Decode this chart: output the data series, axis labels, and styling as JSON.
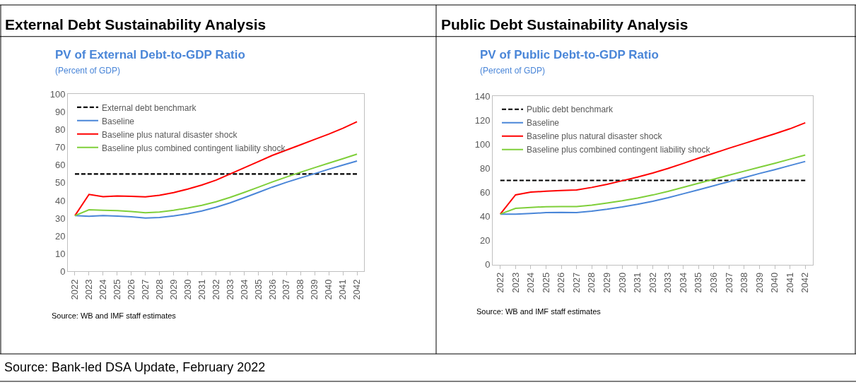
{
  "chart_data": [
    {
      "type": "line",
      "title": "PV of External Debt-to-GDP Ratio",
      "subtitle": "(Percent of GDP)",
      "categories": [
        "2022",
        "2023",
        "2024",
        "2025",
        "2026",
        "2027",
        "2028",
        "2029",
        "2030",
        "2031",
        "2032",
        "2033",
        "2034",
        "2035",
        "2036",
        "2037",
        "2038",
        "2039",
        "2040",
        "2041",
        "2042"
      ],
      "series": [
        {
          "name": "External debt benchmark",
          "color": "#000000",
          "line_style": "dashed",
          "values": [
            55,
            55,
            55,
            55,
            55,
            55,
            55,
            55,
            55,
            55,
            55,
            55,
            55,
            55,
            55,
            55,
            55,
            55,
            55,
            55,
            55
          ]
        },
        {
          "name": "Baseline",
          "color": "#4a86d8",
          "values": [
            31.5,
            31.1,
            31.5,
            31.2,
            30.8,
            30.1,
            30.4,
            31.3,
            32.5,
            34.1,
            36.2,
            38.7,
            41.6,
            44.6,
            47.6,
            50.3,
            52.8,
            55.2,
            57.7,
            60,
            62.3
          ]
        },
        {
          "name": "Baseline plus natural disaster shock",
          "color": "#ff0000",
          "values": [
            31.5,
            43.5,
            42.2,
            42.6,
            42.4,
            42.1,
            43,
            44.5,
            46.5,
            48.8,
            51.5,
            55,
            58.5,
            62,
            65.5,
            68.5,
            71.5,
            74.5,
            77.5,
            80.8,
            84.5
          ]
        },
        {
          "name": "Baseline plus combined contingent liability shock",
          "color": "#7fcf3a",
          "values": [
            31.5,
            34.8,
            34.5,
            34.3,
            33.8,
            33.1,
            33.5,
            34.5,
            35.8,
            37.3,
            39.3,
            41.8,
            44.6,
            47.5,
            50.5,
            53.3,
            56,
            58.6,
            61.1,
            63.6,
            66.2
          ]
        }
      ],
      "ylim": [
        0,
        100
      ],
      "yticks": [
        0,
        10,
        20,
        30,
        40,
        50,
        60,
        70,
        80,
        90,
        100
      ],
      "grid": false,
      "legend": "top left",
      "marker": "none",
      "annotations": [
        "External Debt Sustainability Analysis",
        "Source: WB and IMF staff estimates",
        "Source: Bank-led DSA Update, February 2022"
      ]
    },
    {
      "type": "line",
      "title": "PV of Public Debt-to-GDP Ratio",
      "subtitle": "(Percent of GDP)",
      "categories": [
        "2022",
        "2023",
        "2024",
        "2025",
        "2026",
        "2027",
        "2028",
        "2029",
        "2030",
        "2031",
        "2032",
        "2033",
        "2034",
        "2035",
        "2036",
        "2037",
        "2038",
        "2039",
        "2040",
        "2041",
        "2042"
      ],
      "series": [
        {
          "name": "Public debt benchmark",
          "color": "#000000",
          "line_style": "dashed",
          "values": [
            70,
            70,
            70,
            70,
            70,
            70,
            70,
            70,
            70,
            70,
            70,
            70,
            70,
            70,
            70,
            70,
            70,
            70,
            70,
            70,
            70
          ]
        },
        {
          "name": "Baseline",
          "color": "#4a86d8",
          "values": [
            42,
            42,
            42.5,
            43.2,
            43.4,
            43.2,
            44.5,
            46.1,
            48,
            50.2,
            52.7,
            55.6,
            58.9,
            62.2,
            65.6,
            69,
            72.4,
            75.8,
            79,
            82.4,
            85.8
          ]
        },
        {
          "name": "Baseline plus natural disaster shock",
          "color": "#ff0000",
          "values": [
            42,
            58,
            60.3,
            61,
            61.7,
            62.1,
            64.2,
            66.8,
            69.8,
            72.8,
            76.2,
            80,
            84.2,
            88.5,
            92.6,
            96.8,
            100.8,
            104.8,
            108.8,
            113,
            118
          ]
        },
        {
          "name": "Baseline plus combined contingent liability shock",
          "color": "#7fcf3a",
          "values": [
            42,
            46.8,
            47.6,
            48.1,
            48.3,
            48.2,
            49.5,
            51.2,
            53.1,
            55.3,
            57.9,
            60.9,
            64.3,
            67.7,
            71,
            74.4,
            77.7,
            81,
            84.3,
            87.7,
            91.2
          ]
        }
      ],
      "ylim": [
        0,
        140
      ],
      "yticks": [
        0,
        20,
        40,
        60,
        80,
        100,
        120,
        140
      ],
      "grid": false,
      "legend": "top left",
      "marker": "none",
      "annotations": [
        "Public Debt Sustainability Analysis",
        "Source: WB and IMF staff estimates"
      ]
    }
  ]
}
